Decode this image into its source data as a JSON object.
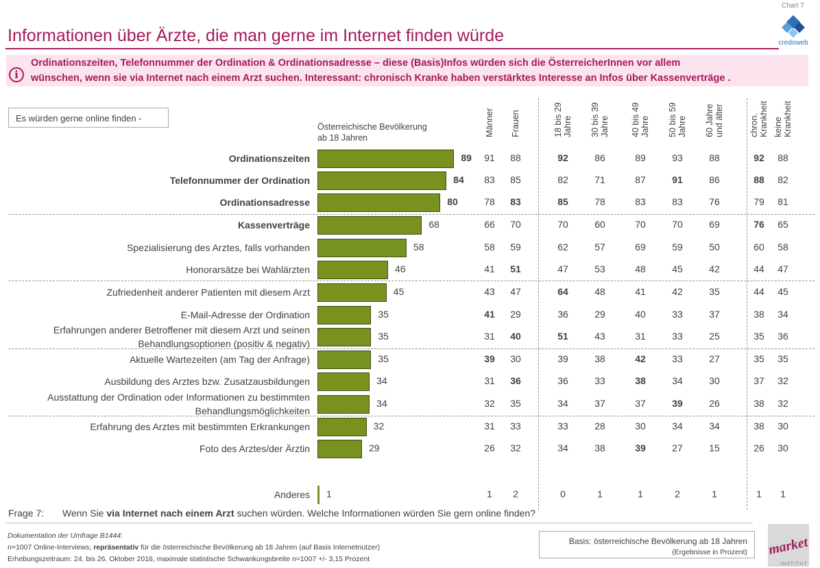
{
  "header": {
    "chart_tag": "Chart 7",
    "title": "Informationen über Ärzte, die man gerne im Internet finden würde",
    "logo_text": "credoweb"
  },
  "info": {
    "icon": "info-icon",
    "line1": "Ordinationszeiten, Telefonnummer der Ordination & Ordinationsadresse – diese (Basis)Infos würden sich die ÖsterreicherInnen vor allem",
    "line2": "wünschen, wenn sie via Internet nach einem Arzt suchen. Interessant: chronisch Kranke haben verstärktes Interesse an Infos über Kassenverträge ."
  },
  "filter_label": "Es würden gerne online finden -",
  "population_label_1": "Österreichische Bevölkerung",
  "population_label_2": "ab 18 Jahren",
  "colors": {
    "bar": "#77921f",
    "bar_border": "#3c4f12",
    "accent": "#a6195a",
    "info_bg": "#fbe4ee"
  },
  "chart_data": {
    "type": "bar",
    "orientation": "horizontal",
    "xlim": [
      0,
      100
    ],
    "grid": false,
    "column_headers": [
      [
        "Männer"
      ],
      [
        "Frauen"
      ],
      [
        "18 bis 29",
        "Jahre"
      ],
      [
        "30 bis 39",
        "Jahre"
      ],
      [
        "40 bis 49",
        "Jahre"
      ],
      [
        "50 bis 59",
        "Jahre"
      ],
      [
        "60 Jahre",
        "und älter"
      ],
      [
        "chron.",
        "Krankheit"
      ],
      [
        "keine",
        "Krankheit"
      ]
    ],
    "rows": [
      {
        "label": [
          "Ordinationszeiten"
        ],
        "bold": true,
        "value": 89,
        "cols": [
          "91",
          "88",
          "92",
          "86",
          "89",
          "93",
          "88",
          "92",
          "88"
        ],
        "bold_cols": [
          2,
          7
        ]
      },
      {
        "label": [
          "Telefonnummer der Ordination"
        ],
        "bold": true,
        "value": 84,
        "cols": [
          "83",
          "85",
          "82",
          "71",
          "87",
          "91",
          "86",
          "88",
          "82"
        ],
        "bold_cols": [
          5,
          7
        ]
      },
      {
        "label": [
          "Ordinationsadresse"
        ],
        "bold": true,
        "value": 80,
        "cols": [
          "78",
          "83",
          "85",
          "78",
          "83",
          "83",
          "76",
          "79",
          "81"
        ],
        "bold_cols": [
          1,
          2
        ]
      },
      {
        "label": [
          "Kassenverträge"
        ],
        "bold": true,
        "value": 68,
        "cols": [
          "66",
          "70",
          "70",
          "60",
          "70",
          "70",
          "69",
          "76",
          "65"
        ],
        "bold_cols": [
          7
        ]
      },
      {
        "label": [
          "Spezialisierung des Arztes, falls vorhanden"
        ],
        "bold": false,
        "value": 58,
        "cols": [
          "58",
          "59",
          "62",
          "57",
          "69",
          "59",
          "50",
          "60",
          "58"
        ],
        "bold_cols": []
      },
      {
        "label": [
          "Honorarsätze bei Wahlärzten"
        ],
        "bold": false,
        "value": 46,
        "cols": [
          "41",
          "51",
          "47",
          "53",
          "48",
          "45",
          "42",
          "44",
          "47"
        ],
        "bold_cols": [
          1
        ]
      },
      {
        "label": [
          "Zufriedenheit anderer Patienten mit diesem Arzt"
        ],
        "bold": false,
        "value": 45,
        "cols": [
          "43",
          "47",
          "64",
          "48",
          "41",
          "42",
          "35",
          "44",
          "45"
        ],
        "bold_cols": [
          2
        ]
      },
      {
        "label": [
          "E-Mail-Adresse der Ordination"
        ],
        "bold": false,
        "value": 35,
        "cols": [
          "41",
          "29",
          "36",
          "29",
          "40",
          "33",
          "37",
          "38",
          "34"
        ],
        "bold_cols": [
          0
        ]
      },
      {
        "label": [
          "Erfahrungen anderer Betroffener mit diesem Arzt und seinen",
          "Behandlungsoptionen (positiv & negativ)"
        ],
        "bold": false,
        "value": 35,
        "cols": [
          "31",
          "40",
          "51",
          "43",
          "31",
          "33",
          "25",
          "35",
          "36"
        ],
        "bold_cols": [
          1,
          2
        ]
      },
      {
        "label": [
          "Aktuelle Wartezeiten (am Tag der Anfrage)"
        ],
        "bold": false,
        "value": 35,
        "cols": [
          "39",
          "30",
          "39",
          "38",
          "42",
          "33",
          "27",
          "35",
          "35"
        ],
        "bold_cols": [
          0,
          4
        ]
      },
      {
        "label": [
          "Ausbildung des Arztes bzw. Zusatzausbildungen"
        ],
        "bold": false,
        "value": 34,
        "cols": [
          "31",
          "36",
          "36",
          "33",
          "38",
          "34",
          "30",
          "37",
          "32"
        ],
        "bold_cols": [
          1,
          4
        ]
      },
      {
        "label": [
          "Ausstattung der Ordination oder Informationen zu bestimmten",
          "Behandlungsmöglichkeiten"
        ],
        "bold": false,
        "value": 34,
        "cols": [
          "32",
          "35",
          "34",
          "37",
          "37",
          "39",
          "26",
          "38",
          "32"
        ],
        "bold_cols": [
          5
        ]
      },
      {
        "label": [
          "Erfahrung des Arztes mit bestimmten Erkrankungen"
        ],
        "bold": false,
        "value": 32,
        "cols": [
          "31",
          "33",
          "33",
          "28",
          "30",
          "34",
          "34",
          "38",
          "30"
        ],
        "bold_cols": []
      },
      {
        "label": [
          "Foto des Arztes/der Ärztin"
        ],
        "bold": false,
        "value": 29,
        "cols": [
          "26",
          "32",
          "34",
          "38",
          "39",
          "27",
          "15",
          "26",
          "30"
        ],
        "bold_cols": [
          4
        ]
      },
      {
        "label": [
          "Anderes"
        ],
        "bold": false,
        "value": 1,
        "cols": [
          "1",
          "2",
          "0",
          "1",
          "1",
          "2",
          "1",
          "1",
          "1"
        ],
        "bold_cols": []
      }
    ]
  },
  "question": {
    "label": "Frage 7:",
    "text_pre": "Wenn Sie ",
    "text_bold": "via Internet nach einem Arzt",
    "text_post": " suchen würden. Welche Informationen würden Sie gern online finden?"
  },
  "footer": {
    "doc_line1": "Dokumentation der Umfrage B1444:",
    "doc_line2_pre": "n=1007 Online-Interviews, ",
    "doc_line2_bold": "repräsentativ",
    "doc_line2_post": " für die österreichische Bevölkerung ab 18 Jahren (auf Basis Internetnutzer)",
    "doc_line3": "Erhebungszeitraum: 24. bis 26. Oktober 2016, maximale statistische Schwankungsbreite n=1007 +/- 3,15 Prozent",
    "basis_line1": "Basis: österreichische Bevölkerung ab 18 Jahren",
    "basis_line2": "(Ergebnisse in Prozent)",
    "market_logo_text": "market",
    "market_logo_sub": "INSTITUT"
  }
}
